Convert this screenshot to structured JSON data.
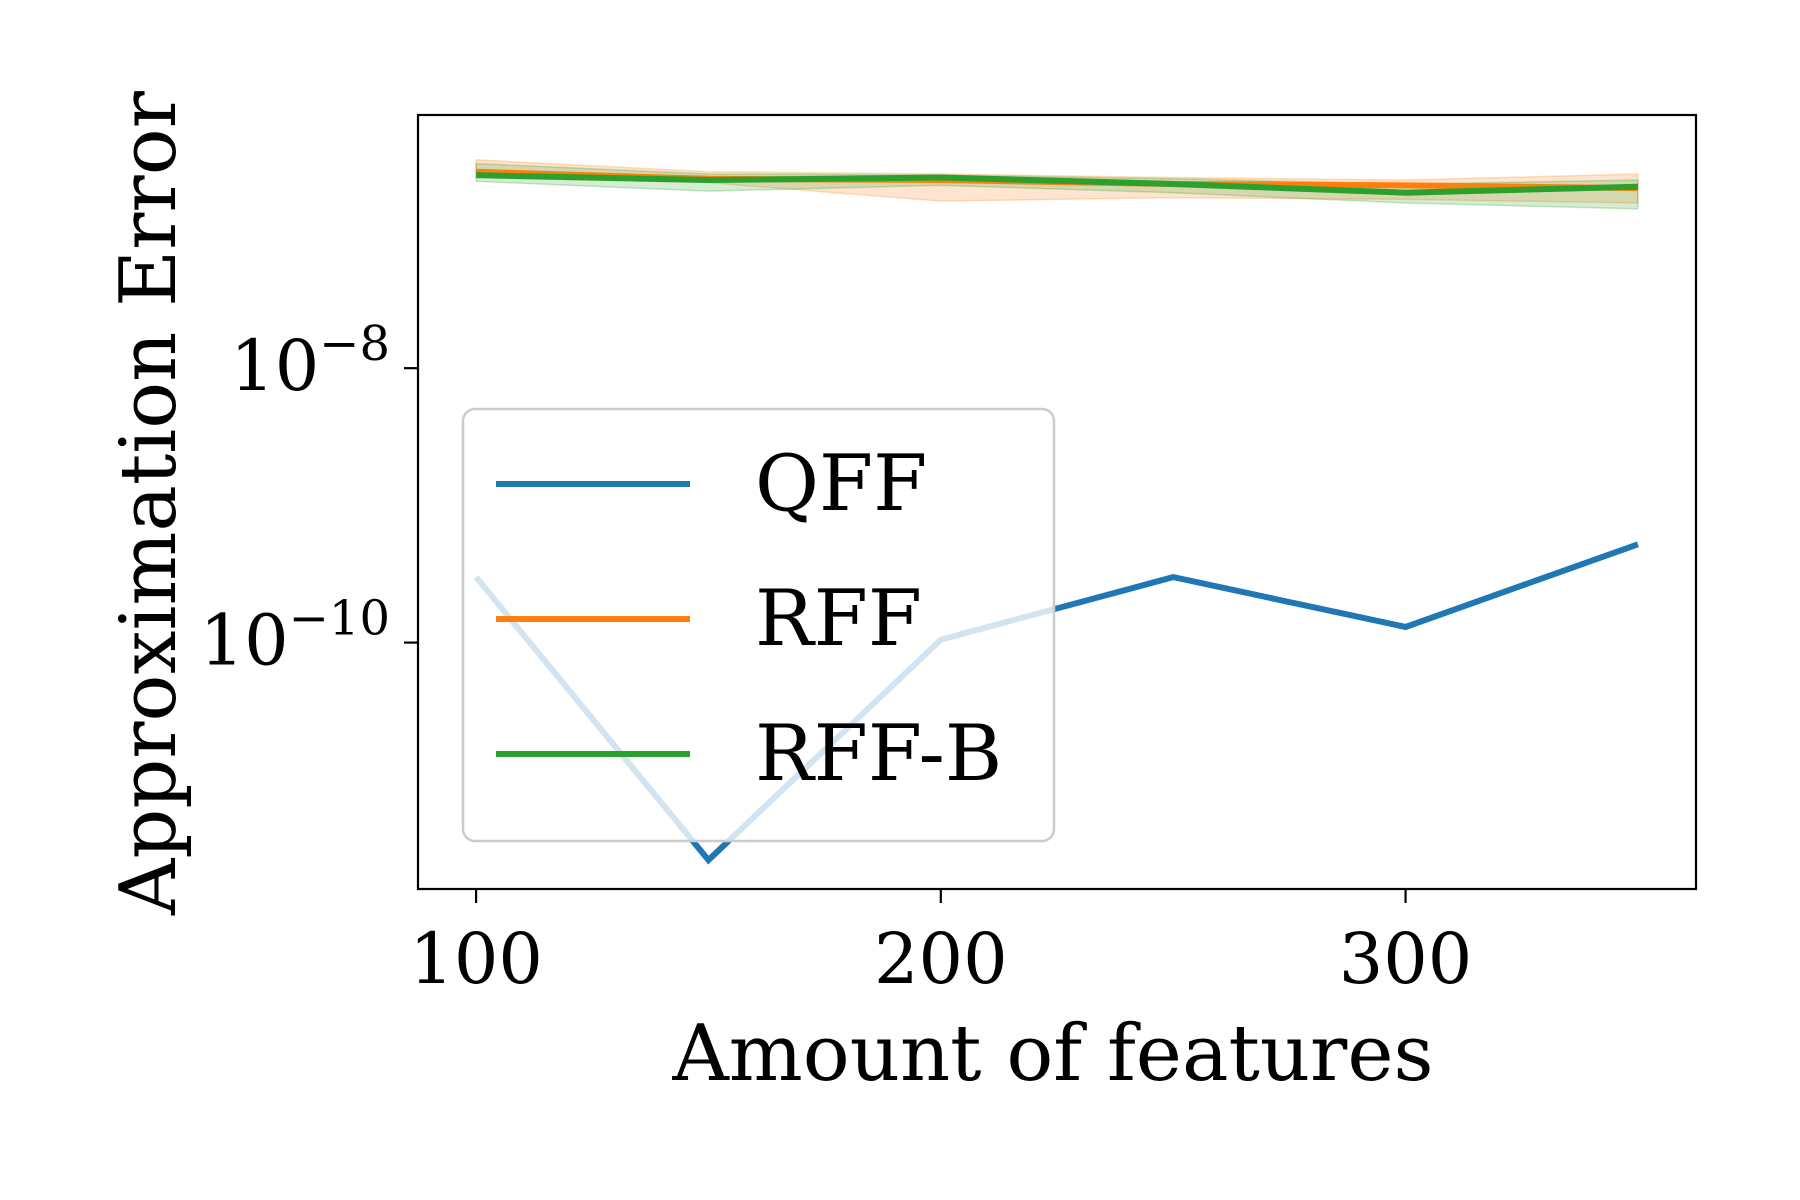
{
  "chart_data": {
    "type": "line",
    "xlabel": "Amount of features",
    "ylabel": "Approximation Error",
    "y_scale": "log",
    "x_ticks": [
      100,
      200,
      300
    ],
    "x_tick_labels": [
      "100",
      "200",
      "300"
    ],
    "y_ticks": [
      1e-10,
      1e-08
    ],
    "y_tick_labels": [
      {
        "base": "10",
        "exp": "−10"
      },
      {
        "base": "10",
        "exp": "−8"
      }
    ],
    "xlim": [
      87.5,
      362.5
    ],
    "ylim": [
      1.6e-12,
      7e-07
    ],
    "grid": false,
    "legend_position": "lower-left",
    "series": [
      {
        "name": "QFF",
        "color": "#1f77b4",
        "x": [
          100,
          150,
          200,
          250,
          300,
          350
        ],
        "y": [
          3e-10,
          2.6e-12,
          1.05e-10,
          3e-10,
          1.3e-10,
          5.2e-10
        ]
      },
      {
        "name": "RFF",
        "color": "#ff7f0e",
        "x": [
          100,
          150,
          200,
          250,
          300,
          350
        ],
        "y": [
          2.7e-07,
          2.4e-07,
          2.35e-07,
          2.2e-07,
          2.15e-07,
          2.05e-07
        ],
        "band_low": [
          2.45e-07,
          2.25e-07,
          1.65e-07,
          1.75e-07,
          1.7e-07,
          1.6e-07
        ],
        "band_high": [
          3.3e-07,
          2.7e-07,
          2.6e-07,
          2.45e-07,
          2.35e-07,
          2.6e-07
        ]
      },
      {
        "name": "RFF-B",
        "color": "#2ca02c",
        "x": [
          100,
          150,
          200,
          250,
          300,
          350
        ],
        "y": [
          2.55e-07,
          2.35e-07,
          2.45e-07,
          2.2e-07,
          1.9e-07,
          2.1e-07
        ],
        "band_low": [
          2.3e-07,
          1.95e-07,
          2.15e-07,
          1.9e-07,
          1.6e-07,
          1.45e-07
        ],
        "band_high": [
          3.1e-07,
          2.6e-07,
          2.55e-07,
          2.4e-07,
          2.2e-07,
          2.35e-07
        ]
      }
    ]
  }
}
